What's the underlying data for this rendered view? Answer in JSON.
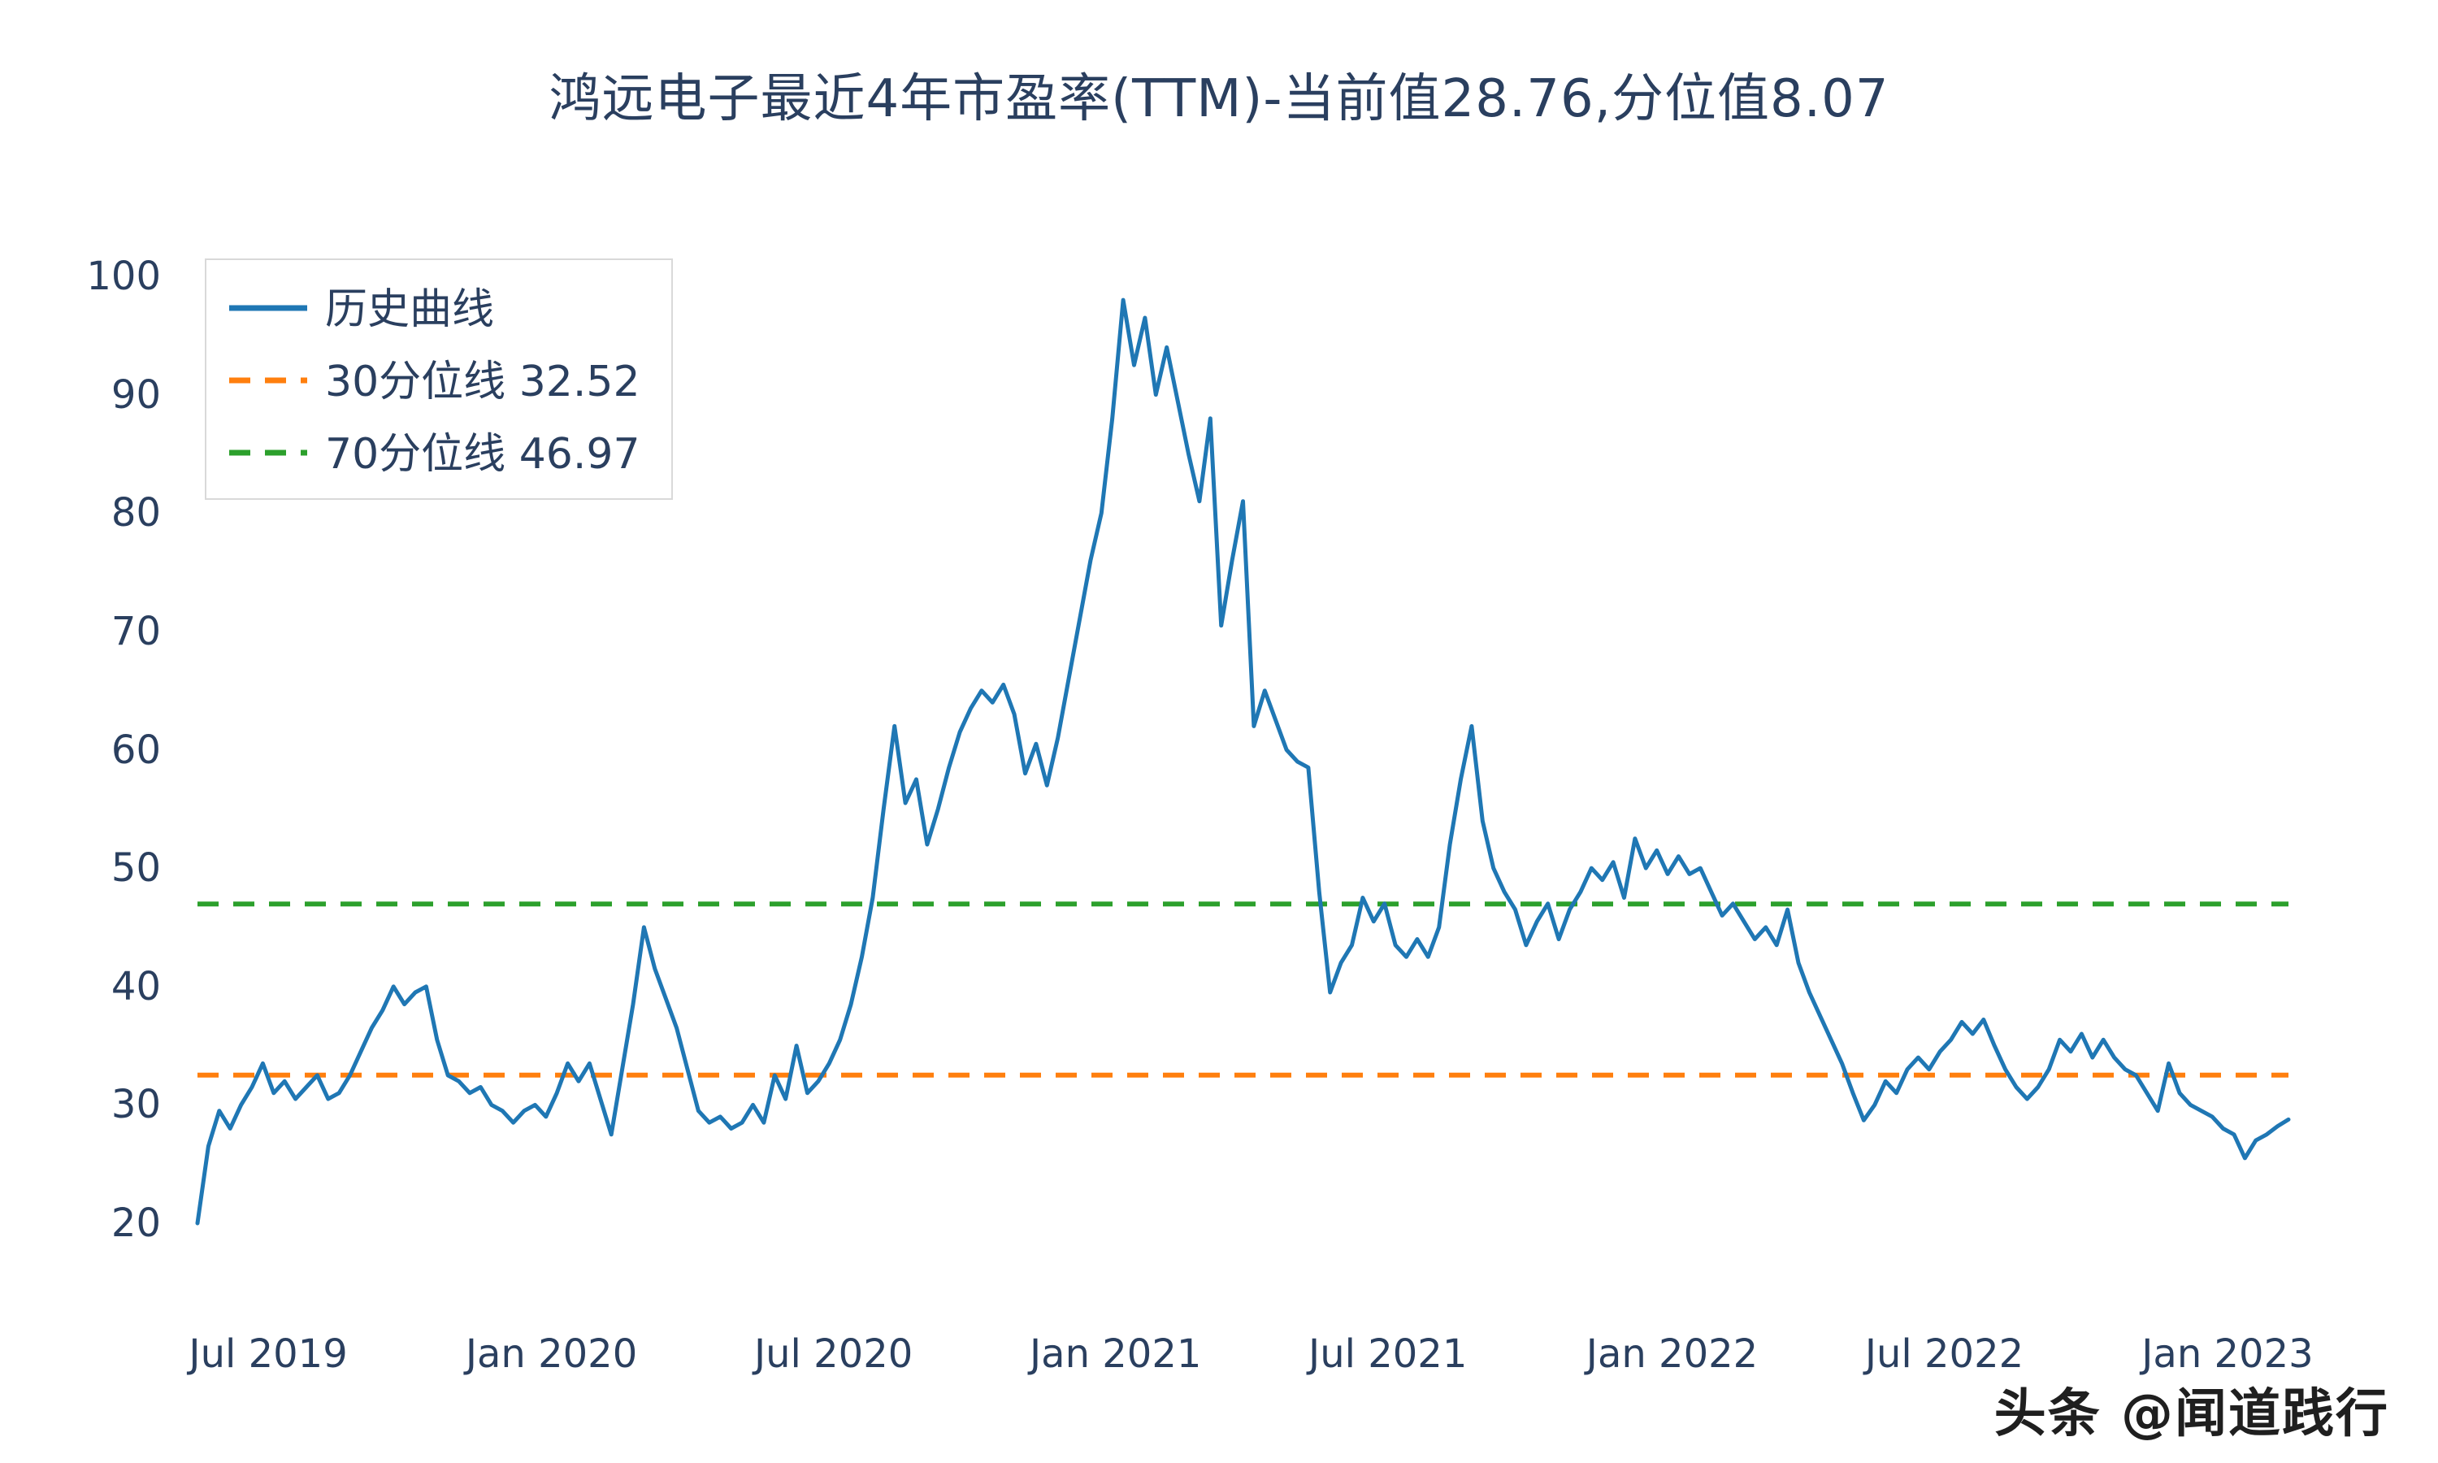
{
  "page": {
    "watermark": "头条 @闻道践行"
  },
  "chart_data": {
    "type": "line",
    "title": "鸿远电子最近4年市盈率(TTM)-当前值28.76,分位值8.07",
    "current_value": 28.76,
    "percentile_value": 8.07,
    "line_color": "#1f77b4",
    "background": "#ffffff",
    "grid": false,
    "legend_position": "top-left",
    "ylim": [
      20,
      100
    ],
    "y_ticks": [
      20,
      30,
      40,
      50,
      60,
      70,
      80,
      90,
      100
    ],
    "x_ticks": [
      {
        "label": "Jul 2019",
        "pos": 6.5
      },
      {
        "label": "Jan 2020",
        "pos": 32.5
      },
      {
        "label": "Jul 2020",
        "pos": 58.4
      },
      {
        "label": "Jan 2021",
        "pos": 84.3
      },
      {
        "label": "Jul 2021",
        "pos": 109.3
      },
      {
        "label": "Jan 2022",
        "pos": 135.4
      },
      {
        "label": "Jul 2022",
        "pos": 160.4
      },
      {
        "label": "Jan 2023",
        "pos": 186.4
      }
    ],
    "series": [
      {
        "name": "历史曲线",
        "color": "#1f77b4",
        "dash": false,
        "values": [
          20,
          26.5,
          29.5,
          28,
          30,
          31.5,
          33.5,
          31,
          32,
          30.5,
          31.5,
          32.5,
          30.5,
          31,
          32.5,
          34.5,
          36.5,
          38,
          40,
          38.5,
          39.5,
          40,
          35.5,
          32.5,
          32,
          31,
          31.5,
          30,
          29.5,
          28.5,
          29.5,
          30,
          29,
          31,
          33.5,
          32,
          33.5,
          30.5,
          27.5,
          33,
          38.5,
          45,
          41.5,
          39,
          36.5,
          33,
          29.5,
          28.5,
          29,
          28,
          28.5,
          30,
          28.5,
          32.5,
          30.5,
          35,
          31,
          32,
          33.5,
          35.5,
          38.5,
          42.5,
          47.5,
          55,
          62,
          55.5,
          57.5,
          52,
          55,
          58.5,
          61.5,
          63.5,
          65,
          64,
          65.5,
          63,
          58,
          60.5,
          57,
          61,
          66,
          71,
          76,
          80,
          88,
          98,
          92.5,
          96.5,
          90,
          94,
          89.5,
          85,
          81,
          88,
          70.5,
          76,
          81,
          62,
          65,
          62.5,
          60,
          59,
          58.5,
          48,
          39.5,
          42,
          43.5,
          47.5,
          45.5,
          47,
          43.5,
          42.5,
          44,
          42.5,
          45,
          52,
          57.5,
          62,
          54,
          50,
          48,
          46.5,
          43.5,
          45.5,
          47,
          44,
          46.5,
          48,
          50,
          49,
          50.5,
          47.5,
          52.5,
          50,
          51.5,
          49.5,
          51,
          49.5,
          50,
          48,
          46,
          47,
          45.5,
          44,
          45,
          43.5,
          46.5,
          42,
          39.5,
          37.5,
          35.5,
          33.5,
          31,
          28.7,
          30,
          32,
          31,
          33,
          34,
          33,
          34.5,
          35.5,
          37,
          36,
          37.2,
          35,
          33,
          31.5,
          30.5,
          31.5,
          33,
          35.5,
          34.5,
          36,
          34,
          35.5,
          34,
          33,
          32.5,
          31,
          29.5,
          33.5,
          31,
          30,
          29.5,
          29,
          28,
          27.5,
          25.5,
          27,
          27.5,
          28.2,
          28.76
        ]
      }
    ],
    "reference_lines": [
      {
        "name": "30分位线",
        "value": 32.52,
        "color": "#ff7f0e",
        "dash": true
      },
      {
        "name": "70分位线",
        "value": 46.97,
        "color": "#2ca02c",
        "dash": true
      }
    ],
    "legend_entries": [
      "历史曲线",
      "30分位线 32.52",
      "70分位线 46.97"
    ]
  }
}
